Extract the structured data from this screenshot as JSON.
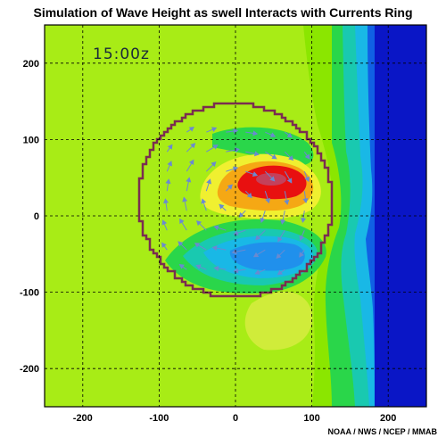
{
  "header": {
    "title": "Simulation of Wave Height as swell Interacts with Currents Ring",
    "credit": "NOAA / NWS / NCEP / MMAB"
  },
  "chart_data": {
    "type": "heatmap",
    "title": "Simulation of Wave Height as swell Interacts with Currents Ring",
    "time_label": "15:00z",
    "xlabel": "",
    "ylabel": "",
    "xlim": [
      -250,
      250
    ],
    "ylim": [
      -250,
      250
    ],
    "x_ticks": [
      -200,
      -100,
      0,
      100,
      200
    ],
    "y_ticks": [
      200,
      100,
      0,
      -100,
      -200
    ],
    "grid": true,
    "ring": {
      "center": [
        0,
        20
      ],
      "radius": 127
    },
    "features": {
      "maximum_center": [
        45,
        50
      ],
      "minimum_center": [
        40,
        -35
      ],
      "background_level": "yellow-green",
      "east_boundary_x": 180
    },
    "colors": {
      "background": "#a8ec16",
      "lime": "#8be600",
      "green": "#2ad64a",
      "teal": "#19c9b0",
      "cyan": "#19b8e6",
      "sky": "#2090ec",
      "blue": "#1060e4",
      "deep_blue": "#0a16c6",
      "pale_green": "#d0ec3a",
      "yellow": "#f0f030",
      "orange": "#f5a814",
      "red": "#e81010",
      "ring": "#7a2d50",
      "arrow": "#6a8ad0",
      "grid": "#000000"
    }
  }
}
